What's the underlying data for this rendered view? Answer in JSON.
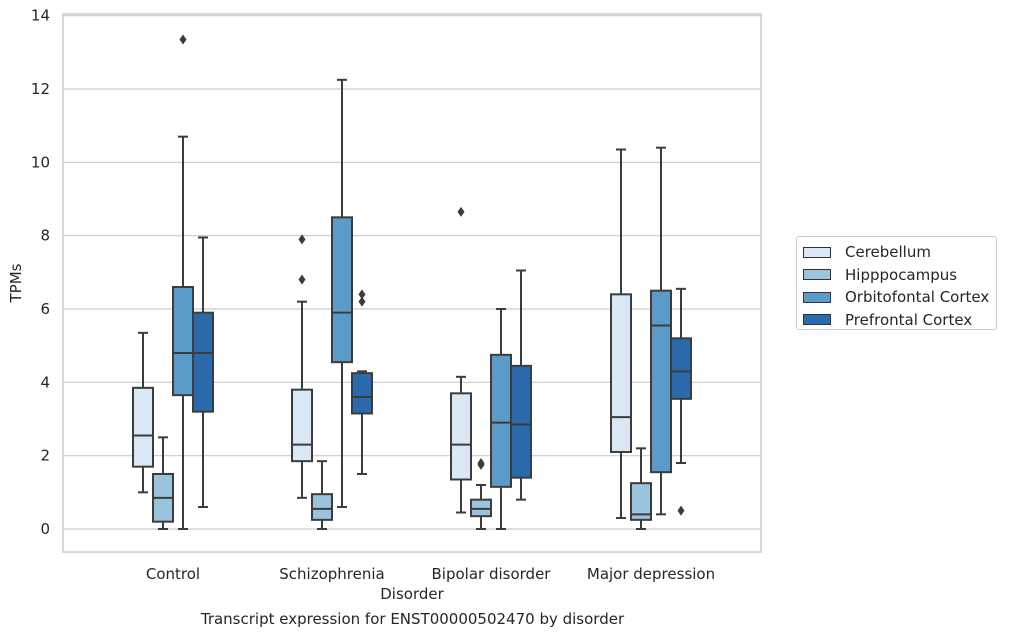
{
  "chart_data": {
    "type": "box",
    "title": "",
    "caption": "Transcript expression for ENST00000502470 by disorder",
    "xlabel": "Disorder",
    "ylabel": "TPMs",
    "categories": [
      "Control",
      "Schizophrenia",
      "Bipolar disorder",
      "Major depression"
    ],
    "ylim": [
      -0.6,
      14.1
    ],
    "yticks": [
      "0",
      "2",
      "4",
      "6",
      "8",
      "10",
      "12",
      "14"
    ],
    "grid": true,
    "legend_position": "right",
    "series": [
      {
        "name": "Cerebellum",
        "color": "#dae8f5",
        "boxes": [
          {
            "min": 1.0,
            "q1": 1.7,
            "median": 2.55,
            "q3": 3.85,
            "max": 5.35,
            "outliers": []
          },
          {
            "min": 0.85,
            "q1": 1.85,
            "median": 2.3,
            "q3": 3.8,
            "max": 6.2,
            "outliers": [
              6.8,
              7.9
            ]
          },
          {
            "min": 0.45,
            "q1": 1.35,
            "median": 2.3,
            "q3": 3.7,
            "max": 4.15,
            "outliers": [
              8.65
            ]
          },
          {
            "min": 0.3,
            "q1": 2.1,
            "median": 3.05,
            "q3": 6.4,
            "max": 10.35,
            "outliers": []
          }
        ]
      },
      {
        "name": "Hipppocampus",
        "color": "#9ac3dd",
        "boxes": [
          {
            "min": 0.0,
            "q1": 0.2,
            "median": 0.85,
            "q3": 1.5,
            "max": 2.5,
            "outliers": []
          },
          {
            "min": 0.0,
            "q1": 0.25,
            "median": 0.55,
            "q3": 0.95,
            "max": 1.85,
            "outliers": []
          },
          {
            "min": 0.0,
            "q1": 0.35,
            "median": 0.55,
            "q3": 0.8,
            "max": 1.2,
            "outliers": [
              1.75,
              1.8
            ]
          },
          {
            "min": 0.0,
            "q1": 0.25,
            "median": 0.4,
            "q3": 1.25,
            "max": 2.2,
            "outliers": []
          }
        ]
      },
      {
        "name": "Orbitofontal Cortex",
        "color": "#5b9bc8",
        "boxes": [
          {
            "min": 0.0,
            "q1": 3.65,
            "median": 4.8,
            "q3": 6.6,
            "max": 10.7,
            "outliers": [
              13.35
            ]
          },
          {
            "min": 0.6,
            "q1": 4.55,
            "median": 5.9,
            "q3": 8.5,
            "max": 12.25,
            "outliers": []
          },
          {
            "min": 0.0,
            "q1": 1.15,
            "median": 2.9,
            "q3": 4.75,
            "max": 6.0,
            "outliers": []
          },
          {
            "min": 0.4,
            "q1": 1.55,
            "median": 5.55,
            "q3": 6.5,
            "max": 10.4,
            "outliers": []
          }
        ]
      },
      {
        "name": "Prefrontal Cortex",
        "color": "#2a6aad",
        "boxes": [
          {
            "min": 0.6,
            "q1": 3.2,
            "median": 4.8,
            "q3": 5.9,
            "max": 7.95,
            "outliers": []
          },
          {
            "min": 1.5,
            "q1": 3.15,
            "median": 3.6,
            "q3": 4.25,
            "max": 4.3,
            "outliers": [
              6.2,
              6.4
            ]
          },
          {
            "min": 0.8,
            "q1": 1.4,
            "median": 2.85,
            "q3": 4.45,
            "max": 7.05,
            "outliers": []
          },
          {
            "min": 1.8,
            "q1": 3.55,
            "median": 4.3,
            "q3": 5.2,
            "max": 6.55,
            "outliers": [
              0.5
            ]
          }
        ]
      }
    ]
  }
}
